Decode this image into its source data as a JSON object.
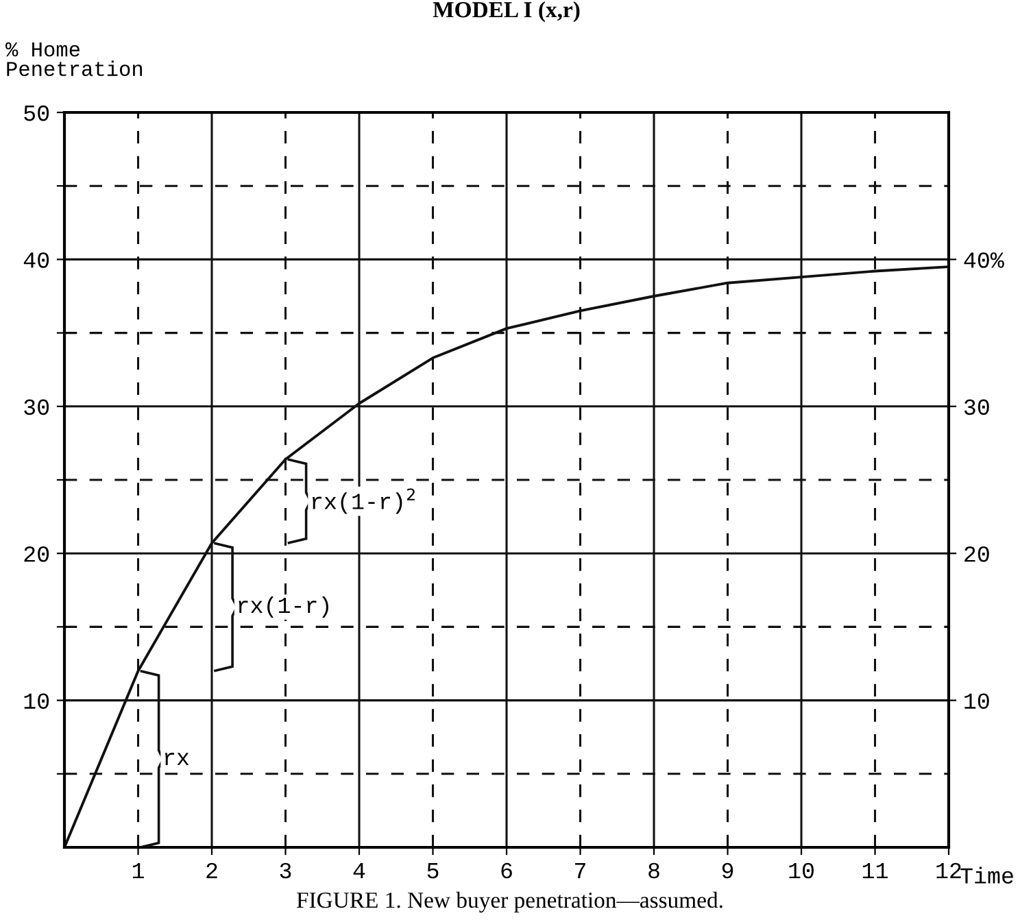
{
  "chart_data": {
    "type": "line",
    "title": "MODEL I (x,r)",
    "ylabel": "% Home\nPenetration",
    "xlabel": "Time",
    "x": [
      0,
      1,
      2,
      3,
      4,
      5,
      6,
      7,
      8,
      9,
      10,
      11,
      12
    ],
    "series": [
      {
        "color": "#111111",
        "values": [
          0,
          12,
          20.7,
          26.4,
          30.2,
          33.3,
          35.3,
          36.5,
          37.5,
          38.4,
          38.8,
          39.2,
          39.5
        ]
      }
    ],
    "xlim": [
      0,
      12
    ],
    "ylim": [
      0,
      50
    ],
    "y2lim": [
      0,
      50
    ],
    "xticks": [
      1,
      2,
      3,
      4,
      5,
      6,
      7,
      8,
      9,
      10,
      11,
      12
    ],
    "yticks": [
      {
        "value": 5,
        "label": null
      },
      10,
      {
        "value": 15,
        "label": null
      },
      20,
      {
        "value": 25,
        "label": null
      },
      30,
      {
        "value": 35,
        "label": null
      },
      40,
      {
        "value": 45,
        "label": null
      },
      50
    ],
    "y2ticks": [
      10,
      20,
      30,
      {
        "value": 40,
        "label": "40%"
      }
    ],
    "grid": true,
    "marker": "none",
    "line_style": "solid",
    "annotations": [
      "rx",
      "rx(1-r)",
      "rx(1-r)$^{2}$",
      "FIGURE 1. New buyer penetration—assumed."
    ]
  }
}
